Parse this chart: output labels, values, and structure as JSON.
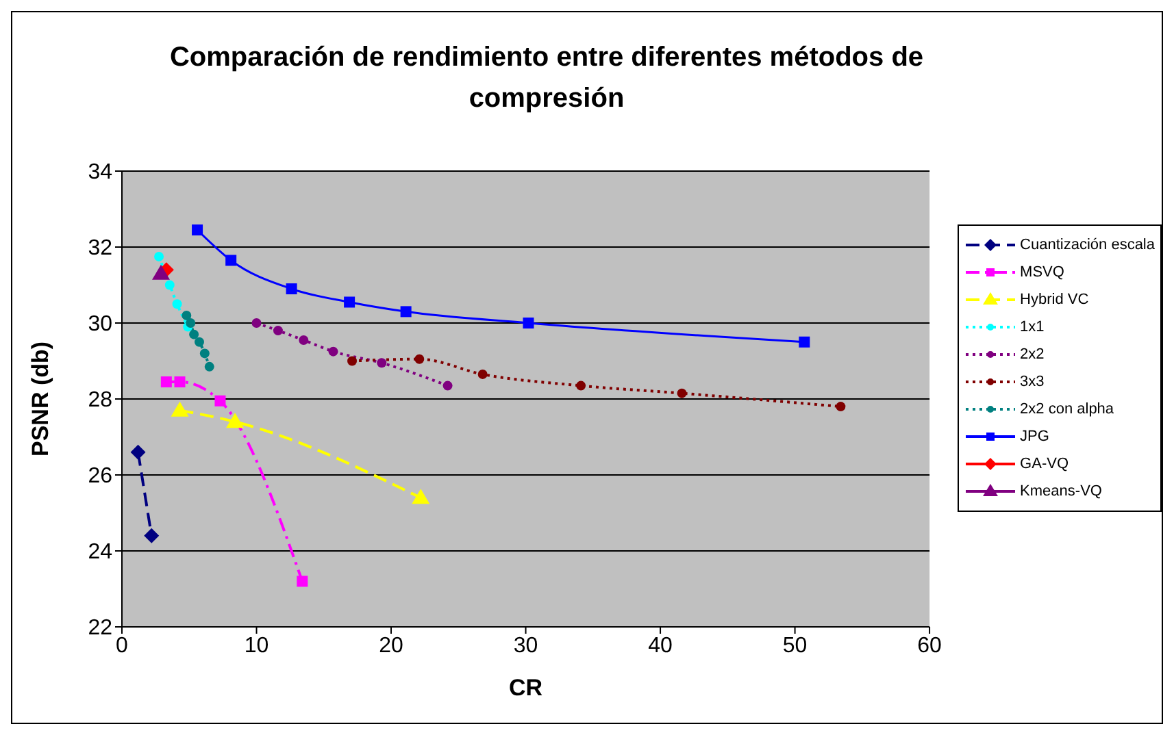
{
  "chart_data": {
    "type": "line",
    "title": "Comparación de rendimiento entre diferentes métodos de compresión",
    "xlabel": "CR",
    "ylabel": "PSNR (db)",
    "xlim": [
      0,
      60
    ],
    "xticks": [
      0,
      10,
      20,
      30,
      40,
      50,
      60
    ],
    "ylim": [
      22,
      34
    ],
    "yticks": [
      22,
      24,
      26,
      28,
      30,
      32,
      34
    ],
    "grid": "y",
    "legend": "right",
    "series": [
      {
        "name": "Cuantización escala",
        "color": "#000080",
        "marker": "diamond",
        "line_style": "dashed",
        "x": [
          1.2,
          2.2
        ],
        "values": [
          26.6,
          24.4
        ]
      },
      {
        "name": "MSVQ",
        "color": "#ff00ff",
        "marker": "square",
        "line_style": "dashdot",
        "x": [
          3.3,
          4.3,
          7.3,
          13.4
        ],
        "values": [
          28.45,
          28.45,
          27.95,
          23.2
        ]
      },
      {
        "name": "Hybrid VC",
        "color": "#ffff00",
        "marker": "triangle",
        "line_style": "dashed",
        "x": [
          4.3,
          8.4,
          22.2
        ],
        "values": [
          27.7,
          27.4,
          25.4
        ]
      },
      {
        "name": "1x1",
        "color": "#00ffff",
        "marker": "circle",
        "line_style": "dotted",
        "x": [
          2.75,
          3.55,
          4.1,
          4.9
        ],
        "values": [
          31.75,
          31.0,
          30.5,
          29.9
        ]
      },
      {
        "name": "2x2",
        "color": "#800080",
        "marker": "circle",
        "line_style": "dotted",
        "x": [
          10.0,
          11.6,
          13.5,
          15.7,
          19.3,
          24.2
        ],
        "values": [
          30.0,
          29.8,
          29.55,
          29.25,
          28.95,
          28.35
        ]
      },
      {
        "name": "3x3",
        "color": "#800000",
        "marker": "circle",
        "line_style": "dotted",
        "x": [
          17.1,
          22.1,
          26.8,
          34.1,
          41.6,
          53.4
        ],
        "values": [
          29.0,
          29.05,
          28.65,
          28.35,
          28.15,
          27.8
        ]
      },
      {
        "name": "2x2 con alpha",
        "color": "#008080",
        "marker": "circle",
        "line_style": "dotted",
        "x": [
          4.8,
          5.1,
          5.35,
          5.75,
          6.15,
          6.5
        ],
        "values": [
          30.2,
          30.0,
          29.7,
          29.5,
          29.2,
          28.85
        ]
      },
      {
        "name": "JPG",
        "color": "#0000ff",
        "marker": "square",
        "line_style": "solid",
        "x": [
          5.6,
          8.1,
          12.6,
          16.9,
          21.1,
          30.2,
          50.7
        ],
        "values": [
          32.45,
          31.65,
          30.9,
          30.55,
          30.3,
          30.0,
          29.5
        ]
      },
      {
        "name": "GA-VQ",
        "color": "#ff0000",
        "marker": "diamond",
        "line_style": "solid",
        "x": [
          3.3
        ],
        "values": [
          31.4
        ]
      },
      {
        "name": "Kmeans-VQ",
        "color": "#800080",
        "marker": "triangle",
        "line_style": "solid",
        "x": [
          2.9
        ],
        "values": [
          31.3
        ]
      }
    ]
  }
}
